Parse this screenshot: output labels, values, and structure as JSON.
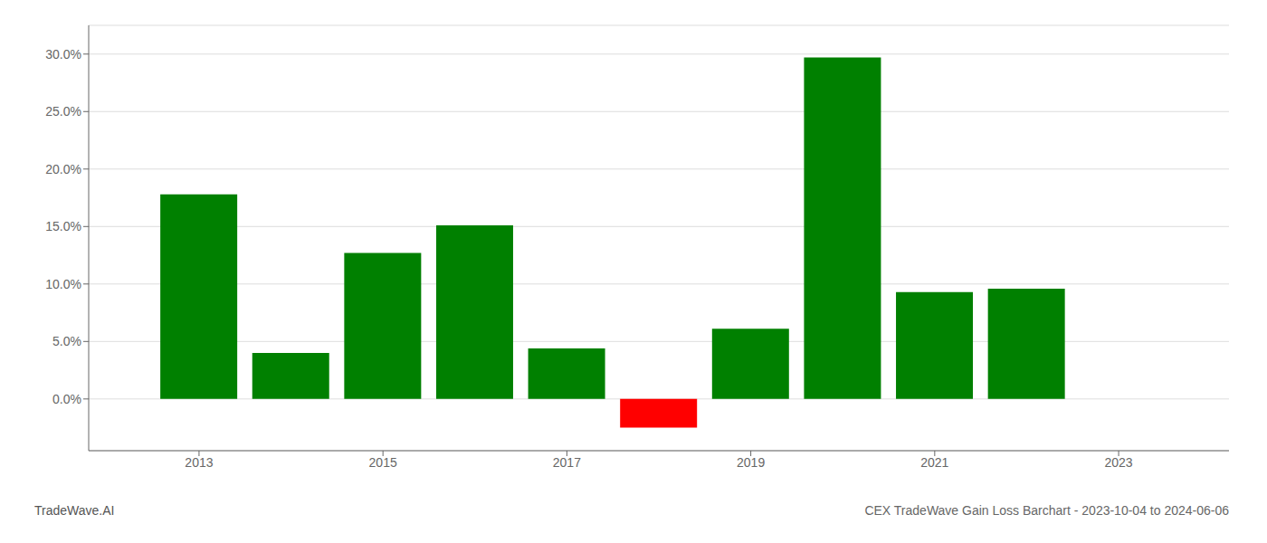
{
  "chart_data": {
    "type": "bar",
    "title": "CEX TradeWave Gain Loss Barchart - 2023-10-04 to 2024-06-06",
    "annotations": [
      "TradeWave.AI"
    ],
    "x": [
      2013,
      2014,
      2015,
      2016,
      2017,
      2018,
      2019,
      2020,
      2021,
      2022
    ],
    "values": [
      0.178,
      0.04,
      0.127,
      0.151,
      0.044,
      -0.025,
      0.061,
      0.297,
      0.093,
      0.096
    ],
    "colors": [
      "#008000",
      "#008000",
      "#008000",
      "#008000",
      "#008000",
      "#ff0000",
      "#008000",
      "#008000",
      "#008000",
      "#008000"
    ],
    "xlim": [
      2011.8,
      2024.2
    ],
    "xticks": [
      2013,
      2015,
      2017,
      2019,
      2021,
      2023
    ],
    "ylim": [
      -0.045,
      0.325
    ],
    "yticks": [
      {
        "value": 0.0,
        "label": "0.0%"
      },
      {
        "value": 0.05,
        "label": "5.0%"
      },
      {
        "value": 0.1,
        "label": "10.0%"
      },
      {
        "value": 0.15,
        "label": "15.0%"
      },
      {
        "value": 0.2,
        "label": "20.0%"
      },
      {
        "value": 0.25,
        "label": "25.0%"
      },
      {
        "value": 0.3,
        "label": "30.0%"
      }
    ],
    "grid": true
  }
}
